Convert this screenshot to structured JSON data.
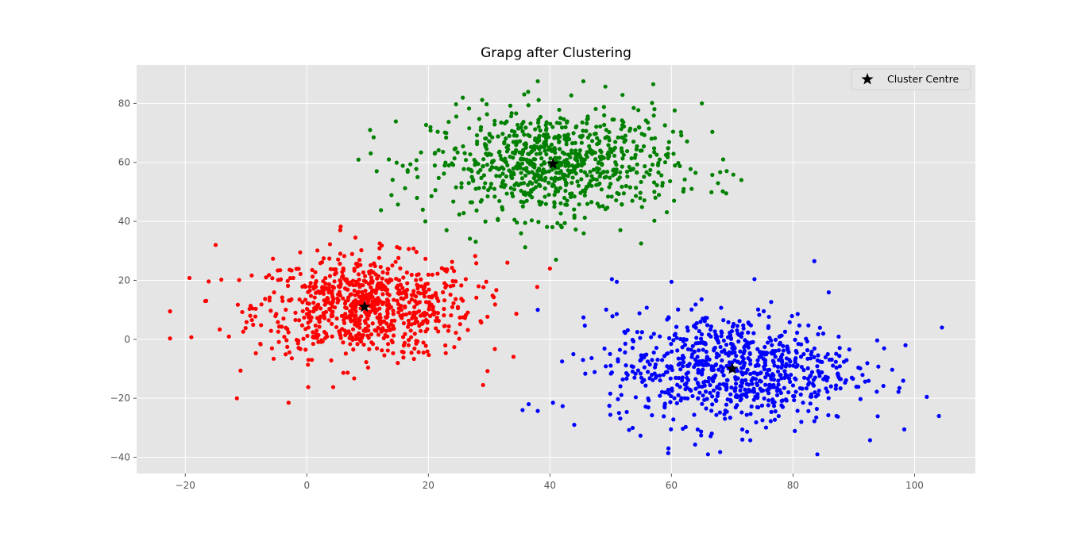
{
  "chart_data": {
    "type": "scatter",
    "title": "Grapg after Clustering",
    "xlabel": "",
    "ylabel": "",
    "xlim": [
      -28,
      110
    ],
    "ylim": [
      -45.5,
      93
    ],
    "xticks": [
      -20,
      0,
      20,
      40,
      60,
      80,
      100
    ],
    "yticks": [
      -40,
      -20,
      0,
      20,
      40,
      60,
      80
    ],
    "xtick_labels": [
      "−20",
      "0",
      "20",
      "40",
      "60",
      "80",
      "100"
    ],
    "ytick_labels": [
      "−40",
      "−20",
      "0",
      "20",
      "40",
      "60",
      "80"
    ],
    "grid": true,
    "background": "#e5e5e5",
    "legend": {
      "placement": "top-right",
      "entries": [
        {
          "label": "Cluster Centre",
          "marker": "star",
          "color": "#000000"
        }
      ]
    },
    "clusters": [
      {
        "color": "#ff0000",
        "center": [
          9.5,
          11
        ],
        "spread": [
          9,
          8.5
        ],
        "count": 800,
        "sample_points": [
          [
            -22.5,
            9.5
          ],
          [
            -22.5,
            0.3
          ],
          [
            -19,
            0.7
          ],
          [
            -15,
            32
          ],
          [
            -11.5,
            -20
          ],
          [
            -3,
            -21.5
          ],
          [
            29,
            -15.5
          ],
          [
            40,
            24
          ],
          [
            33,
            26
          ],
          [
            5.5,
            37
          ],
          [
            8,
            34.5
          ],
          [
            12,
            32.5
          ]
        ]
      },
      {
        "color": "#008000",
        "center": [
          40.5,
          59.5
        ],
        "spread": [
          10,
          9
        ],
        "count": 800,
        "sample_points": [
          [
            11,
            68.5
          ],
          [
            11.5,
            57
          ],
          [
            13.5,
            61
          ],
          [
            19.5,
            40
          ],
          [
            23,
            37
          ],
          [
            38,
            87.5
          ],
          [
            45.5,
            87.5
          ],
          [
            57,
            86.5
          ],
          [
            65,
            80
          ],
          [
            68.5,
            61
          ],
          [
            71.5,
            54
          ],
          [
            69,
            49.5
          ],
          [
            41,
            27
          ],
          [
            55,
            32.5
          ]
        ]
      },
      {
        "color": "#0000ff",
        "center": [
          70,
          -10
        ],
        "spread": [
          10,
          9.5
        ],
        "count": 800,
        "sample_points": [
          [
            35.5,
            -24
          ],
          [
            36.5,
            -22
          ],
          [
            40.5,
            -21.5
          ],
          [
            42,
            -7.5
          ],
          [
            44,
            -29
          ],
          [
            51,
            19.5
          ],
          [
            60,
            19.5
          ],
          [
            59.5,
            -37
          ],
          [
            66,
            -39
          ],
          [
            83.5,
            26.5
          ],
          [
            84,
            -39
          ],
          [
            104.5,
            4
          ],
          [
            104,
            -26
          ],
          [
            98.5,
            -2
          ],
          [
            97.5,
            -16.5
          ]
        ]
      }
    ],
    "centroids": [
      {
        "x": 9.5,
        "y": 11,
        "cluster": "red"
      },
      {
        "x": 40.5,
        "y": 59.5,
        "cluster": "green"
      },
      {
        "x": 70,
        "y": -10,
        "cluster": "blue"
      }
    ]
  }
}
